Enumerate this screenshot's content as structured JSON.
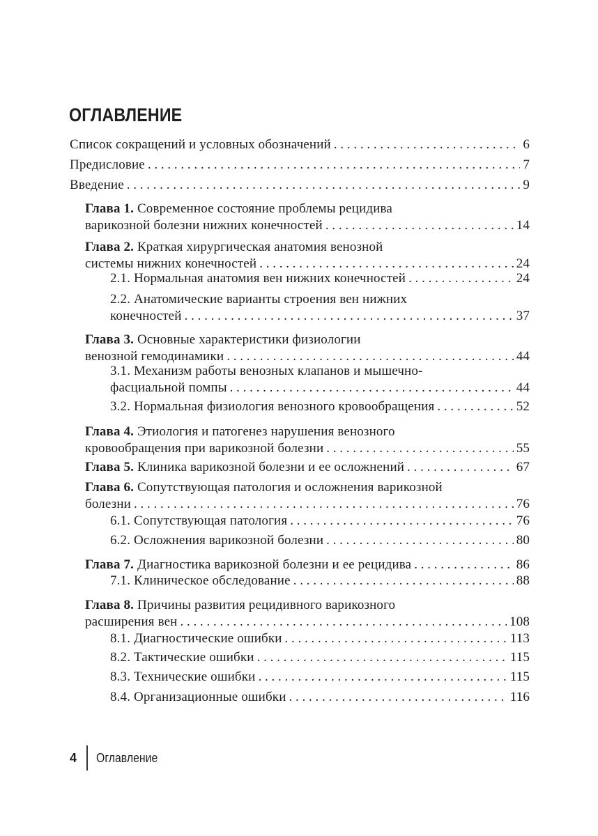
{
  "title": "ОГЛАВЛЕНИЕ",
  "entries": [
    {
      "bold": "",
      "lines": [
        "Список сокращений и условных обозначений"
      ],
      "page": "6"
    },
    {
      "bold": "",
      "lines": [
        "Предисловие"
      ],
      "page": "7"
    },
    {
      "bold": "",
      "lines": [
        "Введение"
      ],
      "page": "9"
    },
    {
      "bold": "Глава 1.",
      "lines": [
        " Современное состояние проблемы рецидива",
        "варикозной болезни нижних конечностей"
      ],
      "page": "14"
    },
    {
      "bold": "Глава 2.",
      "lines": [
        " Краткая хирургическая анатомия венозной",
        "системы нижних конечностей"
      ],
      "page": "24"
    },
    {
      "bold": "",
      "lines": [
        "2.1. Нормальная анатомия вен нижних конечностей"
      ],
      "page": "24"
    },
    {
      "bold": "",
      "lines": [
        "2.2. Анатомические варианты строения вен нижних",
        "конечностей"
      ],
      "page": "37"
    },
    {
      "bold": "Глава 3.",
      "lines": [
        " Основные характеристики физиологии",
        "венозной гемодинамики"
      ],
      "page": "44"
    },
    {
      "bold": "",
      "lines": [
        "3.1. Механизм работы венозных клапанов и мышечно-",
        "фасциальной помпы"
      ],
      "page": "44"
    },
    {
      "bold": "",
      "lines": [
        "3.2. Нормальная физиология венозного кровообращения"
      ],
      "page": "52"
    },
    {
      "bold": "Глава 4.",
      "lines": [
        " Этиология и патогенез нарушения венозного",
        "кровообращения при варикозной болезни"
      ],
      "page": "55"
    },
    {
      "bold": "Глава 5.",
      "lines": [
        " Клиника варикозной болезни и ее осложнений"
      ],
      "page": "67"
    },
    {
      "bold": "Глава 6.",
      "lines": [
        " Сопутствующая патология и осложнения варикозной",
        "болезни"
      ],
      "page": "76"
    },
    {
      "bold": "",
      "lines": [
        "6.1. Сопутствующая патология"
      ],
      "page": "76"
    },
    {
      "bold": "",
      "lines": [
        "6.2. Осложнения варикозной болезни"
      ],
      "page": "80"
    },
    {
      "bold": "Глава 7.",
      "lines": [
        " Диагностика варикозной болезни и ее рецидива"
      ],
      "page": "86"
    },
    {
      "bold": "",
      "lines": [
        "7.1. Клиническое обследование"
      ],
      "page": "88"
    },
    {
      "bold": "Глава 8.",
      "lines": [
        " Причины развития рецидивного варикозного",
        "расширения вен"
      ],
      "page": "108"
    },
    {
      "bold": "",
      "lines": [
        "8.1. Диагностические ошибки"
      ],
      "page": "113"
    },
    {
      "bold": "",
      "lines": [
        "8.2. Тактические ошибки"
      ],
      "page": "115"
    },
    {
      "bold": "",
      "lines": [
        "8.3. Технические ошибки"
      ],
      "page": "115"
    },
    {
      "bold": "",
      "lines": [
        "8.4. Организационные ошибки"
      ],
      "page": "116"
    }
  ],
  "footer": {
    "page_number": "4",
    "section": "Оглавление"
  }
}
